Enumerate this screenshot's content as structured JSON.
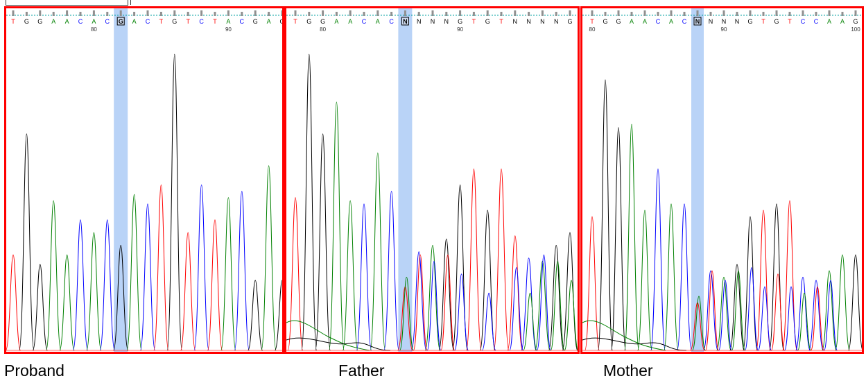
{
  "panels": [
    {
      "label": "Proband",
      "bases": [
        "T",
        "G",
        "G",
        "A",
        "A",
        "C",
        "A",
        "C",
        "G",
        "A",
        "C",
        "T",
        "G",
        "T",
        "C",
        "T",
        "A",
        "C",
        "G",
        "A",
        "G"
      ],
      "highlight_index": 8,
      "position_labels": [
        {
          "index": 6,
          "text": "80"
        },
        {
          "index": 16,
          "text": "90"
        }
      ]
    },
    {
      "label": "Father",
      "bases": [
        "T",
        "G",
        "G",
        "A",
        "A",
        "C",
        "A",
        "C",
        "N",
        "N",
        "N",
        "N",
        "G",
        "T",
        "G",
        "T",
        "N",
        "N",
        "N",
        "N",
        "G"
      ],
      "highlight_index": 8,
      "position_labels": [
        {
          "index": 2,
          "text": "80"
        },
        {
          "index": 12,
          "text": "90"
        }
      ]
    },
    {
      "label": "Mother",
      "bases": [
        "T",
        "G",
        "G",
        "A",
        "A",
        "C",
        "A",
        "C",
        "N",
        "N",
        "N",
        "N",
        "G",
        "T",
        "G",
        "T",
        "C",
        "C",
        "A",
        "A",
        "G"
      ],
      "highlight_index": 8,
      "position_labels": [
        {
          "index": 0,
          "text": "80"
        },
        {
          "index": 10,
          "text": "90"
        },
        {
          "index": 20,
          "text": "100"
        }
      ]
    }
  ],
  "colors": {
    "A": "#008000",
    "C": "#0000ff",
    "G": "#000000",
    "T": "#ff0000",
    "N": "#000000",
    "frame": "#ff0000",
    "highlight": "#b9d3f7",
    "ruler": "#00a0a0"
  }
}
